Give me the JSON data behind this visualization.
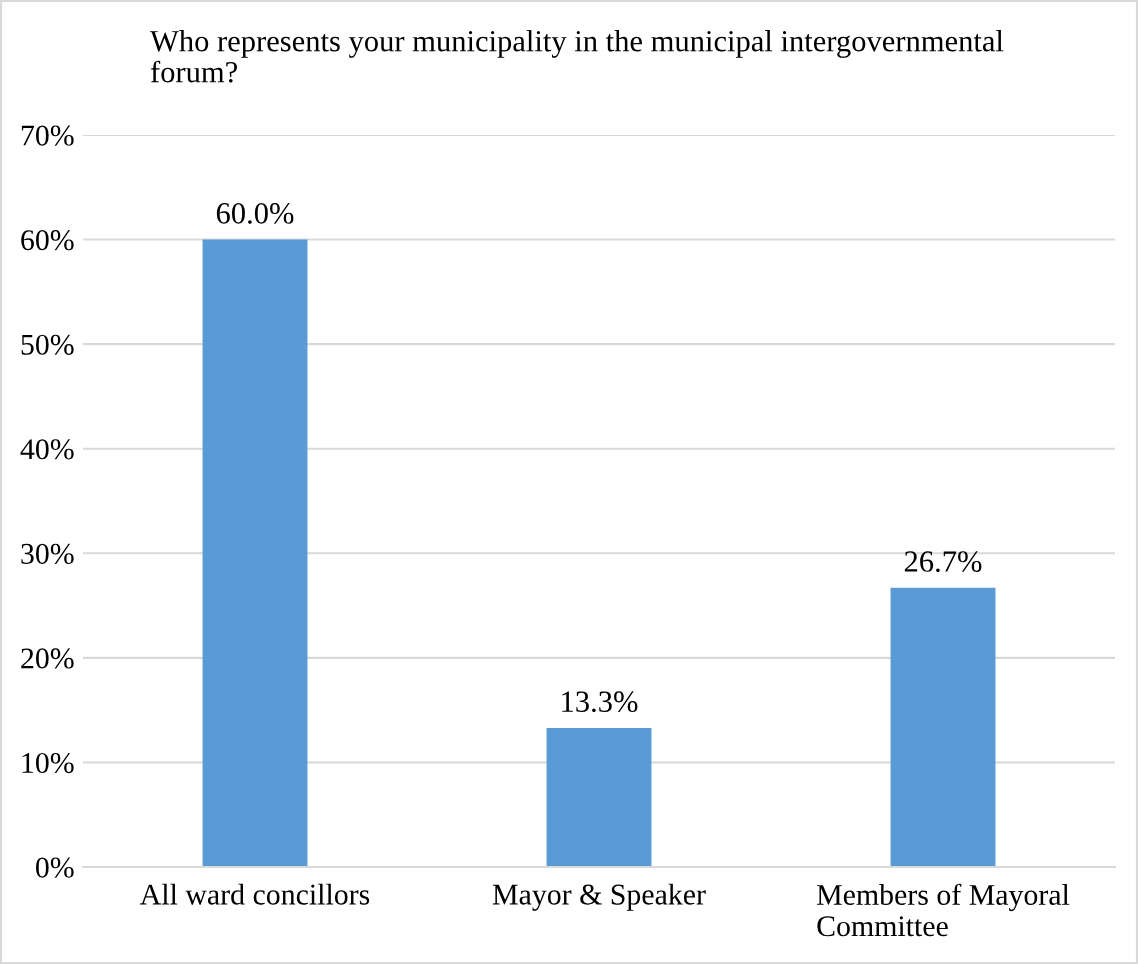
{
  "chart_data": {
    "type": "bar",
    "title": "Who represents your municipality in the municipal intergovernmental forum?",
    "categories": [
      "All ward concillors",
      "Mayor & Speaker",
      "Members of Mayoral Committee"
    ],
    "values": [
      60.0,
      13.3,
      26.7
    ],
    "color": "#5b9bd5",
    "value_labels": [
      "60.0%",
      "13.3%",
      "26.7%"
    ],
    "ylim": [
      0,
      70
    ],
    "yticks": [
      {
        "value": 0,
        "label": "0%"
      },
      {
        "value": 10,
        "label": "10%"
      },
      {
        "value": 20,
        "label": "20%"
      },
      {
        "value": 30,
        "label": "30%"
      },
      {
        "value": 40,
        "label": "40%"
      },
      {
        "value": 50,
        "label": "50%"
      },
      {
        "value": 60,
        "label": "60%"
      },
      {
        "value": 70,
        "label": "70%"
      }
    ],
    "grid": "y"
  }
}
